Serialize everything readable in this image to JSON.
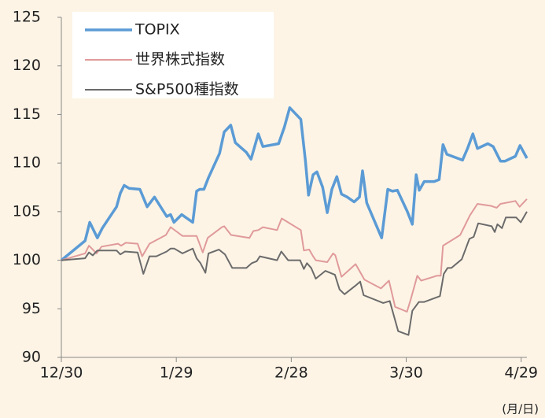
{
  "chart_data": {
    "type": "line",
    "xlim": [
      0,
      121.5
    ],
    "xticks": [
      {
        "value": 0,
        "label": "12/30"
      },
      {
        "value": 30,
        "label": "1/29"
      },
      {
        "value": 60,
        "label": "2/28"
      },
      {
        "value": 90,
        "label": "3/30"
      },
      {
        "value": 120,
        "label": "4/29"
      }
    ],
    "ylim": [
      90,
      125
    ],
    "yticks": [
      90,
      95,
      100,
      105,
      110,
      115,
      120,
      125
    ],
    "x_unit_label": "(月/日)",
    "legend": "upper left",
    "series": [
      {
        "name": "TOPIX",
        "color": "#5b9bd5",
        "x": [
          0,
          6.2,
          7.4,
          9.4,
          10.7,
          14.4,
          15.4,
          16.4,
          17.7,
          20.5,
          22.4,
          24.3,
          27.5,
          28.5,
          29.4,
          31.4,
          34.3,
          35.3,
          36.1,
          37.2,
          38.4,
          41.3,
          42.5,
          44.2,
          45.4,
          48.3,
          49.5,
          51.4,
          52.6,
          56.7,
          58.2,
          59.6,
          62.5,
          63.7,
          64.5,
          65.7,
          66.7,
          68.2,
          69.4,
          70.6,
          71.9,
          73.1,
          74.6,
          76.4,
          77.8,
          78.6,
          79.7,
          83.6,
          85.2,
          86.4,
          87.7,
          90.3,
          91.6,
          92.6,
          93.4,
          94.7,
          97.3,
          98.6,
          99.6,
          100.6,
          104.7,
          106,
          107.4,
          108.6,
          111.3,
          112.7,
          114.6,
          115.8,
          118.5,
          119.7,
          121.5
        ],
        "values": [
          100,
          102,
          103.9,
          102.3,
          103.3,
          105.5,
          106.9,
          107.7,
          107.4,
          107.3,
          105.5,
          106.5,
          104.5,
          104.7,
          103.9,
          104.7,
          103.9,
          107.1,
          107.3,
          107.3,
          108.5,
          111,
          113.2,
          113.9,
          112.1,
          111.1,
          110.4,
          113,
          111.7,
          112,
          113.7,
          115.7,
          114.5,
          110.2,
          106.7,
          108.8,
          109.1,
          107.5,
          104.9,
          107.3,
          108.6,
          106.8,
          106.5,
          106,
          106.5,
          109.2,
          105.9,
          102.3,
          107.3,
          107.1,
          107.2,
          105,
          103.7,
          108.8,
          107.2,
          108.1,
          108.1,
          108.3,
          111.9,
          110.9,
          110.3,
          111.5,
          113,
          111.5,
          112,
          111.7,
          110.2,
          110.2,
          110.7,
          111.8,
          110.5
        ]
      },
      {
        "name": "世界株式指数",
        "color": "#e09a9a",
        "x": [
          0,
          6.2,
          7.2,
          9.2,
          10.5,
          14.8,
          15.6,
          16.8,
          19.9,
          21.1,
          23,
          27.3,
          28.5,
          29.9,
          31.6,
          35.3,
          36.9,
          38.2,
          41.9,
          42.5,
          44.3,
          49.1,
          50.1,
          51.4,
          52.6,
          56.3,
          57.5,
          62.5,
          63.3,
          64.7,
          65.7,
          66.4,
          69.4,
          70.9,
          71.5,
          73.1,
          76.8,
          79.1,
          83.4,
          85.5,
          87.1,
          90.2,
          91.2,
          92.9,
          93.9,
          98,
          99,
          99.6,
          104.1,
          106.6,
          108.6,
          112.1,
          113.6,
          114.6,
          118.5,
          119.6,
          121.5
        ],
        "values": [
          100,
          100.7,
          101.5,
          100.7,
          101.4,
          101.7,
          101.5,
          101.8,
          101.7,
          100.4,
          101.7,
          102.6,
          103.4,
          103,
          102.5,
          102.5,
          100.8,
          102.3,
          103.4,
          103.5,
          102.6,
          102.3,
          103,
          103.1,
          103.4,
          103.1,
          104.3,
          103.1,
          101,
          101.1,
          100.4,
          100,
          99.8,
          100.7,
          100.5,
          98.3,
          99.6,
          98,
          97.1,
          97.9,
          95.2,
          94.7,
          96,
          98.4,
          97.9,
          98.4,
          98.4,
          101.5,
          102.6,
          104.6,
          105.8,
          105.6,
          105.4,
          105.8,
          106.1,
          105.5,
          106.3
        ]
      },
      {
        "name": "S&P500種指数",
        "color": "#6b6b6b",
        "x": [
          0,
          6.2,
          7.2,
          8.2,
          9.4,
          14.4,
          15.4,
          16.6,
          19.9,
          21.4,
          23,
          24.8,
          27.5,
          28.5,
          29.5,
          31.6,
          34.3,
          35.3,
          36.3,
          37.6,
          38.4,
          41.1,
          42.7,
          44.6,
          48.3,
          49.7,
          51,
          51.8,
          56.3,
          57.4,
          59.2,
          62.3,
          63.3,
          64.1,
          65.2,
          66.4,
          68.9,
          71.4,
          72.6,
          73.9,
          76.8,
          78,
          78.9,
          84,
          85.7,
          87.9,
          90.6,
          91.6,
          93.3,
          94.7,
          98.8,
          99.8,
          100.8,
          101.8,
          104.5,
          106.5,
          107.6,
          108.8,
          112.3,
          113.1,
          113.8,
          115,
          116,
          118.7,
          119.9,
          121.5
        ],
        "values": [
          100,
          100.2,
          100.8,
          100.5,
          101,
          101,
          100.6,
          100.9,
          100.8,
          98.6,
          100.4,
          100.4,
          100.9,
          101.2,
          101.2,
          100.7,
          101.2,
          100.2,
          99.7,
          98.7,
          100.7,
          101.1,
          100.6,
          99.2,
          99.2,
          99.7,
          99.9,
          100.4,
          100,
          100.9,
          100,
          100,
          99.1,
          99.7,
          99.2,
          98.1,
          98.9,
          98.5,
          97,
          96.5,
          97.4,
          97.8,
          96.4,
          95.6,
          95.8,
          92.7,
          92.3,
          94.8,
          95.7,
          95.7,
          96.3,
          98.6,
          99.2,
          99.2,
          100.1,
          102.2,
          102.4,
          103.8,
          103.5,
          102.9,
          103.7,
          103.3,
          104.4,
          104.4,
          103.9,
          105
        ]
      }
    ]
  }
}
